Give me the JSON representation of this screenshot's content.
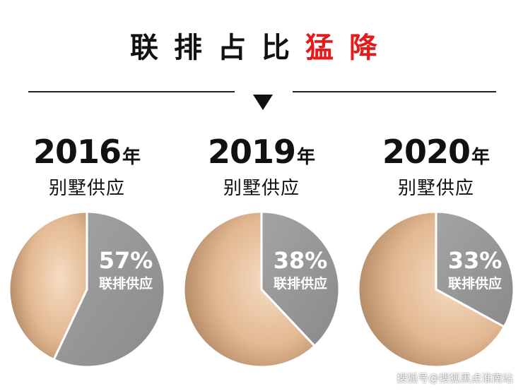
{
  "headline": {
    "plain": "联排占比",
    "accent": "猛降"
  },
  "watermark": "搜狐号@搜狐黑点淮南站",
  "colors": {
    "accent": "#e31b1b",
    "villa_slice": "#e2b892",
    "townhouse_slice": "#9a9a9a"
  },
  "chart_data": [
    {
      "type": "pie",
      "title_year": "2016",
      "title_suffix": "年",
      "subtitle": "别墅供应",
      "slices": [
        {
          "label": "联排供应",
          "value": 57,
          "value_label": "57%"
        },
        {
          "label": "",
          "value": 43
        }
      ]
    },
    {
      "type": "pie",
      "title_year": "2019",
      "title_suffix": "年",
      "subtitle": "别墅供应",
      "slices": [
        {
          "label": "联排供应",
          "value": 38,
          "value_label": "38%"
        },
        {
          "label": "",
          "value": 62
        }
      ]
    },
    {
      "type": "pie",
      "title_year": "2020",
      "title_suffix": "年",
      "subtitle": "别墅供应",
      "slices": [
        {
          "label": "联排供应",
          "value": 33,
          "value_label": "33%"
        },
        {
          "label": "",
          "value": 67
        }
      ]
    }
  ]
}
